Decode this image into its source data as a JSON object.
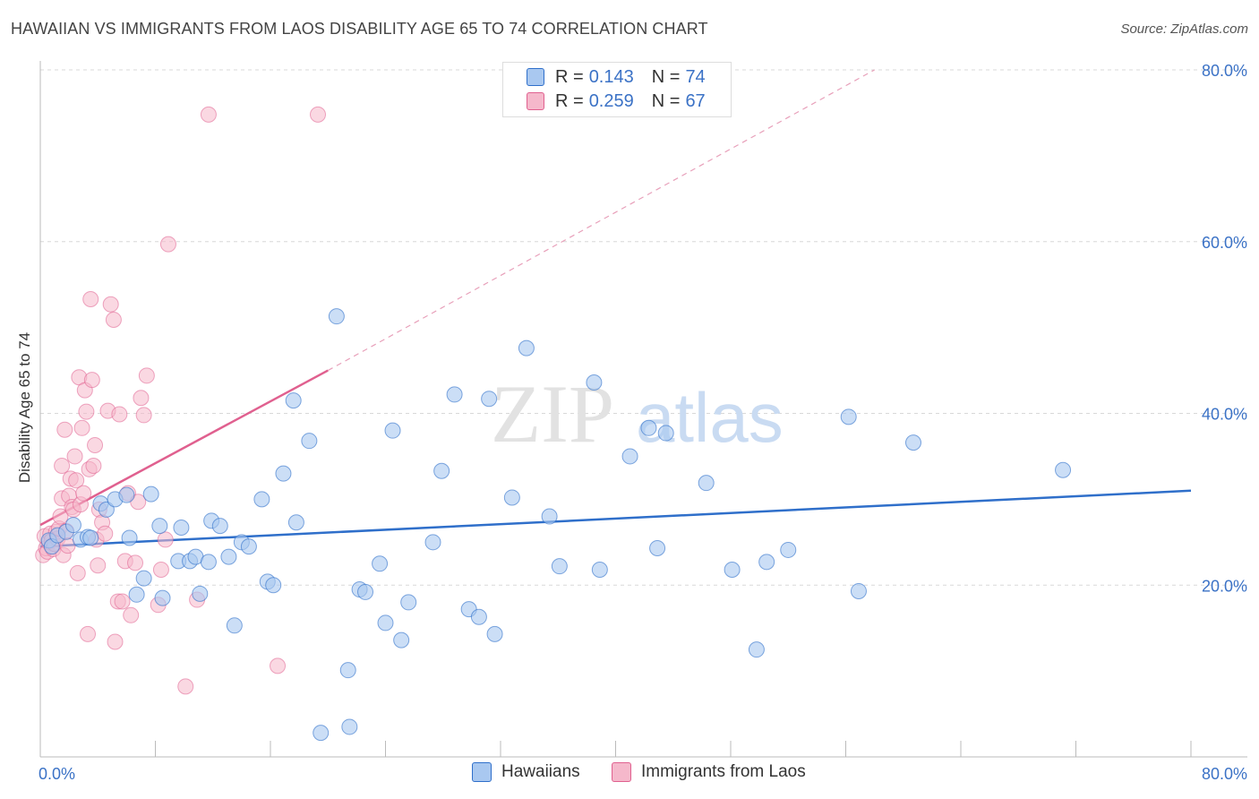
{
  "title": "HAWAIIAN VS IMMIGRANTS FROM LAOS DISABILITY AGE 65 TO 74 CORRELATION CHART",
  "source": "Source: ZipAtlas.com",
  "watermark": {
    "zip": "ZIP",
    "atlas": "atlas"
  },
  "legend_top": {
    "rows": [
      {
        "r_label": "R =",
        "r_value": "0.143",
        "n_label": "N =",
        "n_value": "74",
        "color": "#a9c8f0"
      },
      {
        "r_label": "R =",
        "r_value": "0.259",
        "n_label": "N =",
        "n_value": "67",
        "color": "#f5b8cb"
      }
    ]
  },
  "legend_bottom": {
    "series1": "Hawaiians",
    "series2": "Immigrants from Laos"
  },
  "chart_data": {
    "type": "scatter",
    "title": "HAWAIIAN VS IMMIGRANTS FROM LAOS DISABILITY AGE 65 TO 74 CORRELATION CHART",
    "xlabel": "",
    "ylabel": "Disability Age 65 to 74",
    "xlim": [
      0,
      80
    ],
    "ylim": [
      0,
      80
    ],
    "x_tick_labels": [
      "0.0%",
      "80.0%"
    ],
    "y_tick_labels": [
      "20.0%",
      "40.0%",
      "60.0%",
      "80.0%"
    ],
    "y_ticks": [
      20,
      40,
      60,
      80
    ],
    "grid": true,
    "legend": "bottom-center",
    "colors": {
      "blue_fill": "#a9c8f0",
      "blue_line": "#2f6fca",
      "pink_fill": "#f5b8cb",
      "pink_line": "#e0608f"
    },
    "series": [
      {
        "name": "Hawaiians",
        "color": "#2f6fca",
        "trend": {
          "x": [
            0,
            80
          ],
          "y": [
            24.5,
            31.0
          ]
        },
        "points": [
          [
            0.6,
            25.2
          ],
          [
            0.8,
            24.5
          ],
          [
            1.2,
            25.8
          ],
          [
            1.8,
            26.2
          ],
          [
            2.3,
            27.0
          ],
          [
            2.8,
            25.3
          ],
          [
            3.3,
            25.6
          ],
          [
            3.5,
            25.5
          ],
          [
            4.2,
            29.5
          ],
          [
            4.6,
            28.8
          ],
          [
            5.2,
            30.0
          ],
          [
            6.0,
            30.5
          ],
          [
            6.2,
            25.5
          ],
          [
            6.7,
            18.9
          ],
          [
            7.2,
            20.8
          ],
          [
            7.7,
            30.6
          ],
          [
            8.3,
            26.9
          ],
          [
            8.5,
            18.5
          ],
          [
            9.6,
            22.8
          ],
          [
            9.8,
            26.7
          ],
          [
            10.4,
            22.8
          ],
          [
            10.8,
            23.3
          ],
          [
            11.1,
            19.0
          ],
          [
            11.7,
            22.7
          ],
          [
            11.9,
            27.5
          ],
          [
            12.5,
            26.9
          ],
          [
            13.1,
            23.3
          ],
          [
            13.5,
            15.3
          ],
          [
            14.0,
            25.0
          ],
          [
            14.5,
            24.5
          ],
          [
            15.4,
            30.0
          ],
          [
            15.8,
            20.4
          ],
          [
            16.2,
            20.0
          ],
          [
            16.9,
            33.0
          ],
          [
            17.6,
            41.5
          ],
          [
            17.8,
            27.3
          ],
          [
            18.7,
            36.8
          ],
          [
            19.5,
            2.8
          ],
          [
            20.6,
            51.3
          ],
          [
            21.4,
            10.1
          ],
          [
            21.5,
            3.5
          ],
          [
            22.2,
            19.5
          ],
          [
            22.6,
            19.2
          ],
          [
            23.6,
            22.5
          ],
          [
            24.0,
            15.6
          ],
          [
            24.5,
            38.0
          ],
          [
            25.1,
            13.6
          ],
          [
            25.6,
            18.0
          ],
          [
            27.3,
            25.0
          ],
          [
            27.9,
            33.3
          ],
          [
            28.8,
            42.2
          ],
          [
            29.8,
            17.2
          ],
          [
            30.5,
            16.3
          ],
          [
            31.2,
            41.7
          ],
          [
            31.6,
            14.3
          ],
          [
            32.8,
            30.2
          ],
          [
            33.8,
            47.6
          ],
          [
            35.4,
            28.0
          ],
          [
            36.1,
            22.2
          ],
          [
            38.5,
            43.6
          ],
          [
            38.9,
            21.8
          ],
          [
            42.3,
            38.3
          ],
          [
            42.9,
            24.3
          ],
          [
            43.5,
            37.7
          ],
          [
            46.3,
            31.9
          ],
          [
            48.1,
            21.8
          ],
          [
            49.8,
            12.5
          ],
          [
            50.5,
            22.7
          ],
          [
            52.0,
            24.1
          ],
          [
            56.2,
            39.6
          ],
          [
            56.9,
            19.3
          ],
          [
            60.7,
            36.6
          ],
          [
            71.1,
            33.4
          ],
          [
            41.0,
            35.0
          ]
        ]
      },
      {
        "name": "Immigrants from Laos",
        "color": "#e0608f",
        "trend": {
          "x": [
            0,
            20.0
          ],
          "y": [
            27.0,
            45.0
          ]
        },
        "trend_dashed": {
          "x": [
            20.0,
            58.0
          ],
          "y": [
            45.0,
            80.0
          ]
        },
        "points": [
          [
            0.2,
            23.5
          ],
          [
            0.3,
            25.7
          ],
          [
            0.4,
            24.3
          ],
          [
            0.5,
            23.9
          ],
          [
            0.6,
            25.0
          ],
          [
            0.7,
            26.0
          ],
          [
            0.8,
            25.2
          ],
          [
            0.9,
            24.2
          ],
          [
            1.0,
            24.8
          ],
          [
            1.1,
            26.2
          ],
          [
            1.2,
            25.4
          ],
          [
            1.3,
            26.6
          ],
          [
            1.4,
            28.0
          ],
          [
            1.5,
            33.9
          ],
          [
            1.5,
            30.1
          ],
          [
            1.6,
            23.5
          ],
          [
            1.7,
            38.1
          ],
          [
            1.8,
            26.3
          ],
          [
            1.9,
            24.6
          ],
          [
            2.0,
            30.4
          ],
          [
            2.1,
            32.4
          ],
          [
            2.2,
            29.1
          ],
          [
            2.3,
            28.8
          ],
          [
            2.4,
            35.0
          ],
          [
            2.5,
            32.2
          ],
          [
            2.6,
            21.4
          ],
          [
            2.7,
            44.2
          ],
          [
            2.8,
            29.4
          ],
          [
            2.9,
            38.3
          ],
          [
            3.0,
            30.7
          ],
          [
            3.1,
            42.7
          ],
          [
            3.2,
            40.2
          ],
          [
            3.3,
            14.3
          ],
          [
            3.4,
            33.5
          ],
          [
            3.5,
            53.3
          ],
          [
            3.6,
            43.9
          ],
          [
            3.7,
            33.9
          ],
          [
            3.8,
            36.3
          ],
          [
            3.9,
            25.3
          ],
          [
            4.0,
            22.3
          ],
          [
            4.1,
            28.8
          ],
          [
            4.3,
            27.3
          ],
          [
            4.5,
            26.0
          ],
          [
            4.7,
            40.3
          ],
          [
            4.9,
            52.7
          ],
          [
            5.1,
            50.9
          ],
          [
            5.2,
            13.4
          ],
          [
            5.4,
            18.1
          ],
          [
            5.5,
            39.9
          ],
          [
            5.7,
            18.1
          ],
          [
            5.9,
            22.8
          ],
          [
            6.1,
            30.7
          ],
          [
            6.3,
            16.5
          ],
          [
            6.6,
            22.6
          ],
          [
            6.8,
            29.7
          ],
          [
            7.0,
            41.8
          ],
          [
            7.2,
            39.8
          ],
          [
            7.4,
            44.4
          ],
          [
            8.2,
            17.7
          ],
          [
            8.4,
            21.8
          ],
          [
            8.7,
            25.3
          ],
          [
            8.9,
            59.7
          ],
          [
            10.1,
            8.2
          ],
          [
            10.9,
            18.3
          ],
          [
            11.7,
            74.8
          ],
          [
            16.5,
            10.6
          ],
          [
            19.3,
            74.8
          ]
        ]
      }
    ]
  }
}
